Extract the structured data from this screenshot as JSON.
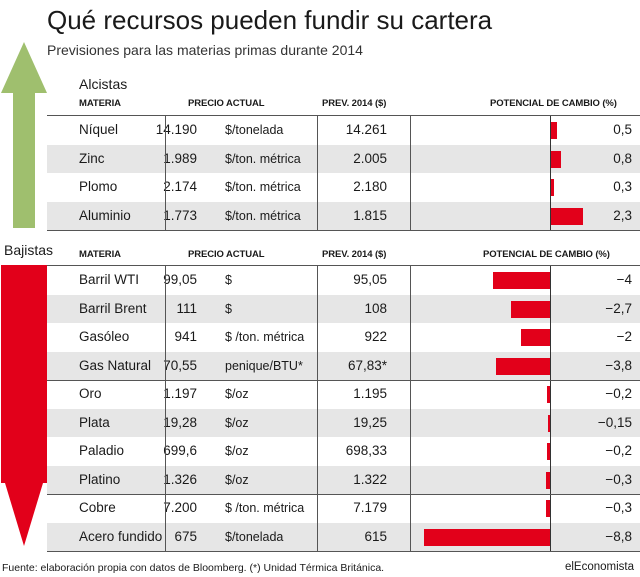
{
  "title": "Qué recursos pueden fundir su cartera",
  "subtitle": "Previsiones para las materias primas durante 2014",
  "colors": {
    "up_arrow": "#9fbf6e",
    "down_arrow": "#e2001a",
    "bar": "#e2001a",
    "shade": "#e6e6e6"
  },
  "headers": {
    "materia": "MATERIA",
    "precio": "PRECIO ACTUAL",
    "prev": "PREV. 2014 ($)",
    "pot": "POTENCIAL DE CAMBIO (%)"
  },
  "footer": {
    "source": "Fuente: elaboración propia con datos de Bloomberg. (*) Unidad Térmica Británica.",
    "brand": "elEconomista"
  },
  "chart_data": {
    "type": "table",
    "sections": [
      {
        "label": "Alcistas",
        "rows": [
          {
            "name": "Níquel",
            "price": "14.190",
            "unit": "$/tonelada",
            "prev": "14.261",
            "pot_label": "0,5",
            "pot": 0.5
          },
          {
            "name": "Zinc",
            "price": "1.989",
            "unit": "$/ton. métrica",
            "prev": "2.005",
            "pot_label": "0,8",
            "pot": 0.8
          },
          {
            "name": "Plomo",
            "price": "2.174",
            "unit": "$/ton. métrica",
            "prev": "2.180",
            "pot_label": "0,3",
            "pot": 0.3
          },
          {
            "name": "Aluminio",
            "price": "1.773",
            "unit": "$/ton. métrica",
            "prev": "1.815",
            "pot_label": "2,3",
            "pot": 2.3
          }
        ]
      },
      {
        "label": "Bajistas",
        "rows": [
          {
            "name": "Barril WTI",
            "price": "99,05",
            "unit": "$",
            "prev": "95,05",
            "pot_label": "−4",
            "pot": -4
          },
          {
            "name": "Barril Brent",
            "price": "111",
            "unit": "$",
            "prev": "108",
            "pot_label": "−2,7",
            "pot": -2.7
          },
          {
            "name": "Gasóleo",
            "price": "941",
            "unit": "$ /ton. métrica",
            "prev": "922",
            "pot_label": "−2",
            "pot": -2
          },
          {
            "name": "Gas Natural",
            "price": "70,55",
            "unit": "penique/BTU*",
            "prev": "67,83*",
            "pot_label": "−3,8",
            "pot": -3.8
          },
          {
            "name": "Oro",
            "price": "1.197",
            "unit": "$/oz",
            "prev": "1.195",
            "pot_label": "−0,2",
            "pot": -0.2
          },
          {
            "name": "Plata",
            "price": "19,28",
            "unit": "$/oz",
            "prev": "19,25",
            "pot_label": "−0,15",
            "pot": -0.15
          },
          {
            "name": "Paladio",
            "price": "699,6",
            "unit": "$/oz",
            "prev": "698,33",
            "pot_label": "−0,2",
            "pot": -0.2
          },
          {
            "name": "Platino",
            "price": "1.326",
            "unit": "$/oz",
            "prev": "1.322",
            "pot_label": "−0,3",
            "pot": -0.3
          },
          {
            "name": "Cobre",
            "price": "7.200",
            "unit": "$ /ton. métrica",
            "prev": "7.179",
            "pot_label": "−0,3",
            "pot": -0.3
          },
          {
            "name": "Acero fundido",
            "price": "675",
            "unit": "$/tonelada",
            "prev": "615",
            "pot_label": "−8,8",
            "pot": -8.8
          }
        ]
      }
    ]
  }
}
